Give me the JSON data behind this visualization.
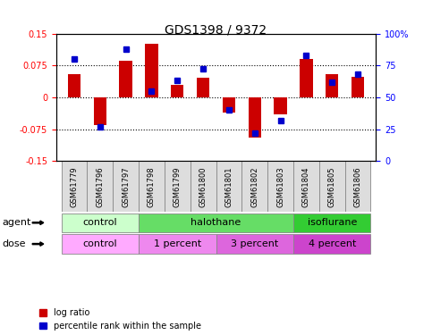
{
  "title": "GDS1398 / 9372",
  "samples": [
    "GSM61779",
    "GSM61796",
    "GSM61797",
    "GSM61798",
    "GSM61799",
    "GSM61800",
    "GSM61801",
    "GSM61802",
    "GSM61803",
    "GSM61804",
    "GSM61805",
    "GSM61806"
  ],
  "log_ratio": [
    0.055,
    -0.065,
    0.085,
    0.125,
    0.03,
    0.045,
    -0.035,
    -0.095,
    -0.04,
    0.09,
    0.055,
    0.048
  ],
  "percentile_rank": [
    80,
    27,
    88,
    55,
    63,
    72,
    40,
    22,
    32,
    83,
    62,
    68
  ],
  "ylim_left": [
    -0.15,
    0.15
  ],
  "ylim_right": [
    0,
    100
  ],
  "yticks_left": [
    -0.15,
    -0.075,
    0,
    0.075,
    0.15
  ],
  "yticks_right": [
    0,
    25,
    50,
    75,
    100
  ],
  "ytick_labels_left": [
    "-0.15",
    "-0.075",
    "0",
    "0.075",
    "0.15"
  ],
  "ytick_labels_right": [
    "0",
    "25",
    "50",
    "75",
    "100%"
  ],
  "hlines": [
    0.075,
    0.0,
    -0.075
  ],
  "bar_color": "#cc0000",
  "dot_color": "#0000cc",
  "bar_width": 0.5,
  "agent_groups": [
    {
      "label": "control",
      "start": 0,
      "end": 3,
      "color": "#ccffcc"
    },
    {
      "label": "halothane",
      "start": 3,
      "end": 9,
      "color": "#66dd66"
    },
    {
      "label": "isoflurane",
      "start": 9,
      "end": 12,
      "color": "#33cc33"
    }
  ],
  "dose_groups": [
    {
      "label": "control",
      "start": 0,
      "end": 3,
      "color": "#ffaaff"
    },
    {
      "label": "1 percent",
      "start": 3,
      "end": 6,
      "color": "#ee88ee"
    },
    {
      "label": "3 percent",
      "start": 6,
      "end": 9,
      "color": "#dd66dd"
    },
    {
      "label": "4 percent",
      "start": 9,
      "end": 12,
      "color": "#cc44cc"
    }
  ],
  "legend_items": [
    {
      "label": "log ratio",
      "color": "#cc0000"
    },
    {
      "label": "percentile rank within the sample",
      "color": "#0000cc"
    }
  ],
  "agent_label": "agent",
  "dose_label": "dose",
  "title_fontsize": 10,
  "tick_fontsize": 7,
  "group_fontsize": 8,
  "legend_fontsize": 7,
  "sample_fontsize": 6
}
